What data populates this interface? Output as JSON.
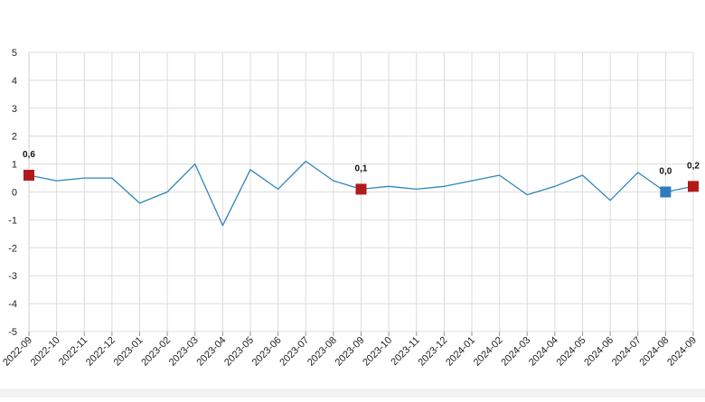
{
  "chart_data": {
    "type": "line",
    "title": "",
    "xlabel": "",
    "ylabel": "",
    "ylim": [
      -5,
      5
    ],
    "yticks": [
      "5",
      "4",
      "3",
      "2",
      "1",
      "0",
      "-1",
      "-2",
      "-3",
      "-4",
      "-5"
    ],
    "grid": true,
    "legend": "none",
    "line_color": "#2e86b9",
    "highlight_color": "#b21a1a",
    "latest_color": "#2e7bbd",
    "categories": [
      "2022-09",
      "2022-10",
      "2022-11",
      "2022-12",
      "2023-01",
      "2023-02",
      "2023-03",
      "2023-04",
      "2023-05",
      "2023-06",
      "2023-07",
      "2023-08",
      "2023-09",
      "2023-10",
      "2023-11",
      "2023-12",
      "2024-01",
      "2024-02",
      "2024-03",
      "2024-04",
      "2024-05",
      "2024-06",
      "2024-07",
      "2024-08",
      "2024-09"
    ],
    "values": [
      0.6,
      0.4,
      0.5,
      0.5,
      -0.4,
      0.0,
      1.0,
      -1.2,
      0.8,
      0.1,
      1.1,
      0.4,
      0.1,
      0.2,
      0.1,
      0.2,
      0.4,
      0.6,
      -0.1,
      0.2,
      0.6,
      -0.3,
      0.7,
      0.0,
      0.2
    ],
    "data_labels": [
      {
        "category": "2022-09",
        "text": "0,6",
        "marker": "highlight"
      },
      {
        "category": "2023-09",
        "text": "0,1",
        "marker": "highlight"
      },
      {
        "category": "2024-08",
        "text": "0,0",
        "marker": "latest"
      },
      {
        "category": "2024-09",
        "text": "0,2",
        "marker": "highlight"
      }
    ]
  }
}
